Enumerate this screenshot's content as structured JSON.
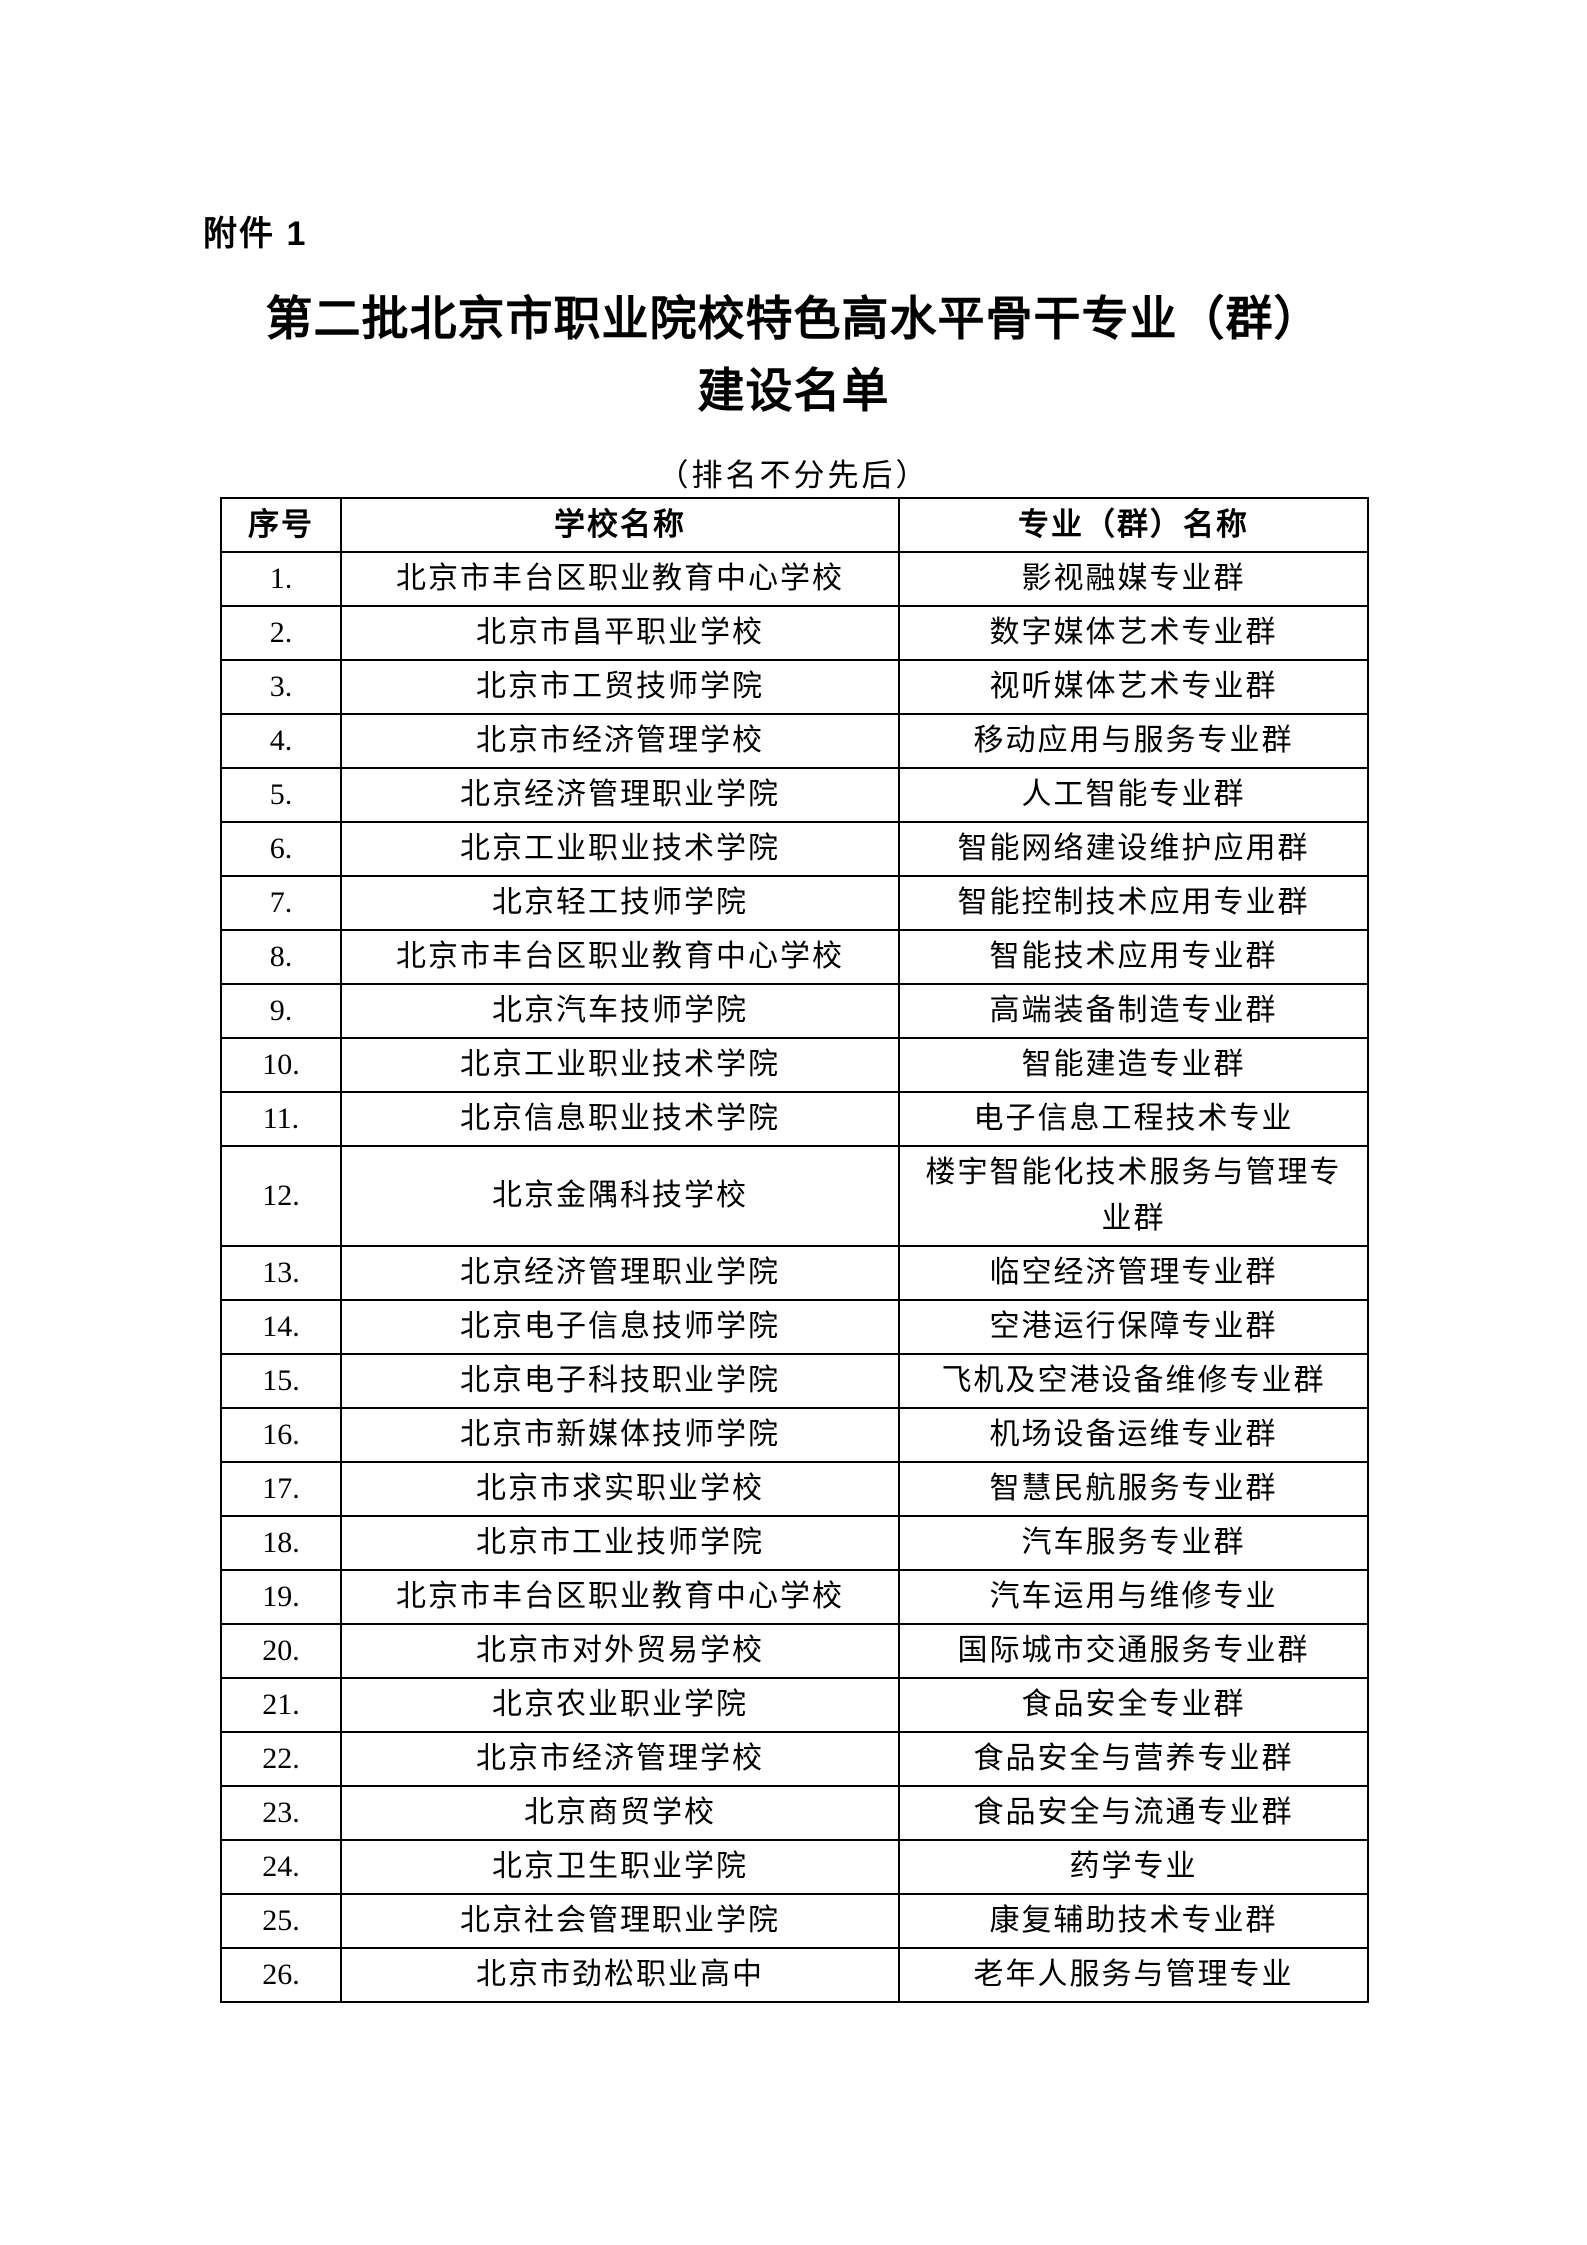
{
  "page": {
    "attachment_label": "附件 1",
    "title_line1": "第二批北京市职业院校特色高水平骨干专业（群）",
    "title_line2": "建设名单",
    "subtitle": "（排名不分先后）"
  },
  "table": {
    "headers": {
      "no": "序号",
      "school": "学校名称",
      "major": "专业（群）名称"
    },
    "rows": [
      {
        "no": "1.",
        "school": "北京市丰台区职业教育中心学校",
        "major": "影视融媒专业群"
      },
      {
        "no": "2.",
        "school": "北京市昌平职业学校",
        "major": "数字媒体艺术专业群"
      },
      {
        "no": "3.",
        "school": "北京市工贸技师学院",
        "major": "视听媒体艺术专业群"
      },
      {
        "no": "4.",
        "school": "北京市经济管理学校",
        "major": "移动应用与服务专业群"
      },
      {
        "no": "5.",
        "school": "北京经济管理职业学院",
        "major": "人工智能专业群"
      },
      {
        "no": "6.",
        "school": "北京工业职业技术学院",
        "major": "智能网络建设维护应用群"
      },
      {
        "no": "7.",
        "school": "北京轻工技师学院",
        "major": "智能控制技术应用专业群"
      },
      {
        "no": "8.",
        "school": "北京市丰台区职业教育中心学校",
        "major": "智能技术应用专业群"
      },
      {
        "no": "9.",
        "school": "北京汽车技师学院",
        "major": "高端装备制造专业群"
      },
      {
        "no": "10.",
        "school": "北京工业职业技术学院",
        "major": "智能建造专业群"
      },
      {
        "no": "11.",
        "school": "北京信息职业技术学院",
        "major": "电子信息工程技术专业"
      },
      {
        "no": "12.",
        "school": "北京金隅科技学校",
        "major": "楼宇智能化技术服务与管理专业群"
      },
      {
        "no": "13.",
        "school": "北京经济管理职业学院",
        "major": "临空经济管理专业群"
      },
      {
        "no": "14.",
        "school": "北京电子信息技师学院",
        "major": "空港运行保障专业群"
      },
      {
        "no": "15.",
        "school": "北京电子科技职业学院",
        "major": "飞机及空港设备维修专业群"
      },
      {
        "no": "16.",
        "school": "北京市新媒体技师学院",
        "major": "机场设备运维专业群"
      },
      {
        "no": "17.",
        "school": "北京市求实职业学校",
        "major": "智慧民航服务专业群"
      },
      {
        "no": "18.",
        "school": "北京市工业技师学院",
        "major": "汽车服务专业群"
      },
      {
        "no": "19.",
        "school": "北京市丰台区职业教育中心学校",
        "major": "汽车运用与维修专业"
      },
      {
        "no": "20.",
        "school": "北京市对外贸易学校",
        "major": "国际城市交通服务专业群"
      },
      {
        "no": "21.",
        "school": "北京农业职业学院",
        "major": "食品安全专业群"
      },
      {
        "no": "22.",
        "school": "北京市经济管理学校",
        "major": "食品安全与营养专业群"
      },
      {
        "no": "23.",
        "school": "北京商贸学校",
        "major": "食品安全与流通专业群"
      },
      {
        "no": "24.",
        "school": "北京卫生职业学院",
        "major": "药学专业"
      },
      {
        "no": "25.",
        "school": "北京社会管理职业学院",
        "major": "康复辅助技术专业群"
      },
      {
        "no": "26.",
        "school": "北京市劲松职业高中",
        "major": "老年人服务与管理专业"
      }
    ]
  }
}
